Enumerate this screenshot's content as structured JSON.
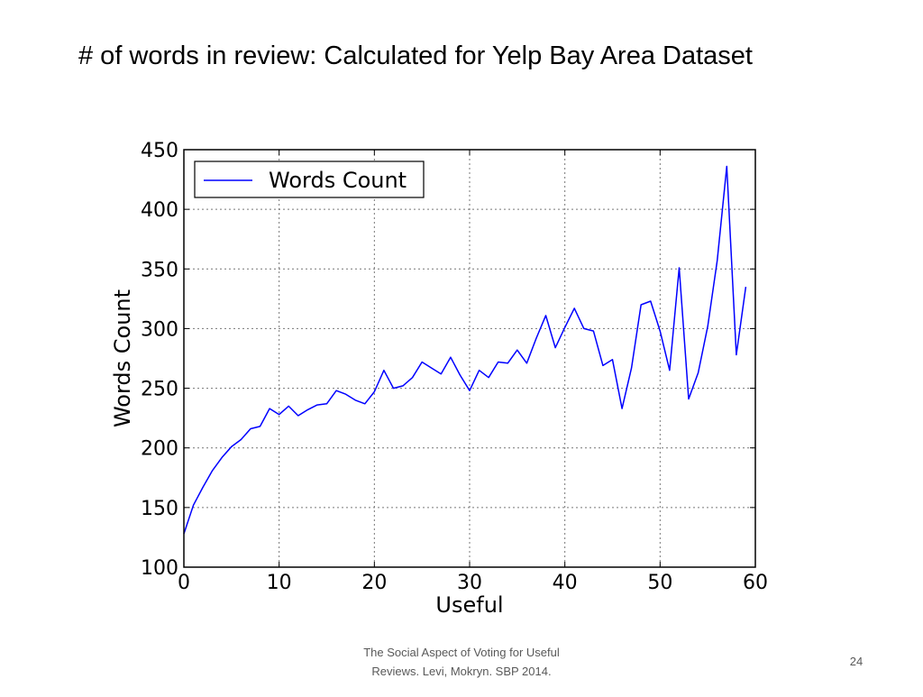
{
  "slide": {
    "title": "# of words in review: Calculated for Yelp Bay Area Dataset",
    "footer_line1": "The Social Aspect of Voting for Useful",
    "footer_line2": "Reviews. Levi, Mokryn. SBP 2014.",
    "page_number": "24"
  },
  "chart_data": {
    "type": "line",
    "title": "",
    "xlabel": "Useful",
    "ylabel": "Words Count",
    "xlim": [
      0,
      60
    ],
    "ylim": [
      100,
      450
    ],
    "xticks": [
      0,
      10,
      20,
      30,
      40,
      50,
      60
    ],
    "yticks": [
      100,
      150,
      200,
      250,
      300,
      350,
      400,
      450
    ],
    "grid": true,
    "legend_position": "top-left",
    "line_color": "#0000ff",
    "series": [
      {
        "name": "Words Count",
        "x": [
          0,
          1,
          2,
          3,
          4,
          5,
          6,
          7,
          8,
          9,
          10,
          11,
          12,
          13,
          14,
          15,
          16,
          17,
          18,
          19,
          20,
          21,
          22,
          23,
          24,
          25,
          26,
          27,
          28,
          29,
          30,
          31,
          32,
          33,
          34,
          35,
          36,
          37,
          38,
          39,
          40,
          41,
          42,
          43,
          44,
          45,
          46,
          47,
          48,
          49,
          50,
          51,
          52,
          53,
          54,
          55,
          56,
          57,
          58,
          59
        ],
        "y": [
          128,
          152,
          167,
          181,
          192,
          201,
          207,
          216,
          218,
          233,
          228,
          235,
          227,
          232,
          236,
          237,
          248,
          245,
          240,
          237,
          247,
          265,
          250,
          252,
          259,
          272,
          267,
          262,
          276,
          261,
          248,
          265,
          259,
          272,
          271,
          282,
          271,
          292,
          311,
          284,
          301,
          317,
          300,
          298,
          269,
          274,
          233,
          267,
          320,
          323,
          298,
          265,
          351,
          241,
          263,
          302,
          357,
          436,
          278,
          335
        ]
      }
    ]
  }
}
